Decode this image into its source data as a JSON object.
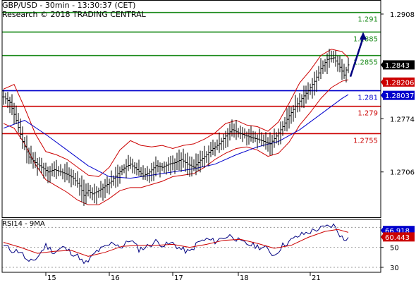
{
  "header": {
    "title": "GBP/USD - 30min - 13:30:37 (CET)",
    "subtitle": "Research © 2018 TRADING CENTRAL"
  },
  "colors": {
    "resistance": "#1a8a1a",
    "pivot": "#0000cc",
    "support": "#cc0000",
    "price": "#000000",
    "bollinger": "#cc0000",
    "moving_average": "#0000cc",
    "arrow": "#000080",
    "rsi": "#000080",
    "rsi_ma": "#cc0000",
    "current_tag_bg": "#000000",
    "blue_tag_bg": "#0000cc",
    "red_tag_bg": "#cc0000"
  },
  "chart_data": [
    {
      "type": "candlestick",
      "ylim": [
        1.2648,
        1.2926
      ],
      "y_ticks": [
        "1.2908",
        "1.2774",
        "1.2706"
      ],
      "x_ticks": [
        "15",
        "16",
        "17",
        "18",
        "21"
      ],
      "levels": [
        {
          "name": "resistance",
          "value": 1.291,
          "label": "1.291"
        },
        {
          "name": "resistance",
          "value": 1.2885,
          "label": "1.2885"
        },
        {
          "name": "resistance",
          "value": 1.2855,
          "label": "1.2855"
        },
        {
          "name": "pivot",
          "value": 1.281,
          "label": "1.281"
        },
        {
          "name": "support",
          "value": 1.279,
          "label": "1.279"
        },
        {
          "name": "support",
          "value": 1.2755,
          "label": "1.2755"
        }
      ],
      "price_tags": [
        {
          "value": 1.2843,
          "label": "1.2843",
          "style": "current"
        },
        {
          "value": 1.2821,
          "label": "1.28206",
          "style": "red"
        },
        {
          "value": 1.2804,
          "label": "1.28037",
          "style": "blue"
        }
      ],
      "close_path": [
        [
          0,
          1.2802
        ],
        [
          3,
          1.2795
        ],
        [
          6,
          1.2772
        ],
        [
          9,
          1.2745
        ],
        [
          12,
          1.2725
        ],
        [
          15,
          1.2718
        ],
        [
          18,
          1.2712
        ],
        [
          21,
          1.2706
        ],
        [
          24,
          1.2709
        ],
        [
          27,
          1.2706
        ],
        [
          30,
          1.2703
        ],
        [
          33,
          1.2698
        ],
        [
          36,
          1.2688
        ],
        [
          38,
          1.2676
        ],
        [
          40,
          1.2682
        ],
        [
          42,
          1.2678
        ],
        [
          45,
          1.2682
        ],
        [
          48,
          1.2688
        ],
        [
          51,
          1.2694
        ],
        [
          54,
          1.2704
        ],
        [
          57,
          1.2711
        ],
        [
          60,
          1.2716
        ],
        [
          63,
          1.2709
        ],
        [
          66,
          1.2701
        ],
        [
          69,
          1.2706
        ],
        [
          72,
          1.2714
        ],
        [
          75,
          1.2712
        ],
        [
          78,
          1.2716
        ],
        [
          81,
          1.2718
        ],
        [
          84,
          1.2722
        ],
        [
          87,
          1.2716
        ],
        [
          90,
          1.2712
        ],
        [
          93,
          1.2721
        ],
        [
          96,
          1.2728
        ],
        [
          99,
          1.2736
        ],
        [
          102,
          1.2742
        ],
        [
          105,
          1.2752
        ],
        [
          108,
          1.276
        ],
        [
          111,
          1.2756
        ],
        [
          114,
          1.2753
        ],
        [
          117,
          1.275
        ],
        [
          120,
          1.2748
        ],
        [
          123,
          1.2745
        ],
        [
          126,
          1.2742
        ],
        [
          129,
          1.2752
        ],
        [
          132,
          1.2764
        ],
        [
          135,
          1.2778
        ],
        [
          138,
          1.279
        ],
        [
          141,
          1.28
        ],
        [
          144,
          1.281
        ],
        [
          147,
          1.2822
        ],
        [
          150,
          1.2838
        ],
        [
          153,
          1.285
        ],
        [
          156,
          1.2852
        ],
        [
          159,
          1.284
        ],
        [
          161,
          1.283
        ],
        [
          163,
          1.2843
        ]
      ],
      "bollinger_upper": [
        [
          0,
          1.2812
        ],
        [
          5,
          1.2818
        ],
        [
          10,
          1.2788
        ],
        [
          15,
          1.2755
        ],
        [
          20,
          1.2732
        ],
        [
          25,
          1.2728
        ],
        [
          30,
          1.2722
        ],
        [
          35,
          1.2712
        ],
        [
          40,
          1.2702
        ],
        [
          45,
          1.27
        ],
        [
          50,
          1.2712
        ],
        [
          55,
          1.2734
        ],
        [
          60,
          1.2746
        ],
        [
          65,
          1.274
        ],
        [
          70,
          1.2738
        ],
        [
          75,
          1.274
        ],
        [
          80,
          1.2736
        ],
        [
          85,
          1.274
        ],
        [
          90,
          1.2742
        ],
        [
          95,
          1.2748
        ],
        [
          100,
          1.2756
        ],
        [
          105,
          1.2768
        ],
        [
          110,
          1.2772
        ],
        [
          115,
          1.2766
        ],
        [
          120,
          1.2764
        ],
        [
          125,
          1.2758
        ],
        [
          130,
          1.277
        ],
        [
          135,
          1.2794
        ],
        [
          140,
          1.282
        ],
        [
          145,
          1.2836
        ],
        [
          150,
          1.2855
        ],
        [
          155,
          1.2863
        ],
        [
          160,
          1.286
        ],
        [
          163,
          1.2852
        ]
      ],
      "bollinger_lower": [
        [
          0,
          1.2768
        ],
        [
          5,
          1.2762
        ],
        [
          10,
          1.2742
        ],
        [
          15,
          1.2716
        ],
        [
          20,
          1.2696
        ],
        [
          25,
          1.2688
        ],
        [
          30,
          1.268
        ],
        [
          35,
          1.267
        ],
        [
          40,
          1.2664
        ],
        [
          45,
          1.2664
        ],
        [
          50,
          1.2672
        ],
        [
          55,
          1.2682
        ],
        [
          60,
          1.2686
        ],
        [
          65,
          1.2686
        ],
        [
          70,
          1.269
        ],
        [
          75,
          1.2694
        ],
        [
          80,
          1.27
        ],
        [
          85,
          1.2702
        ],
        [
          90,
          1.2704
        ],
        [
          95,
          1.2712
        ],
        [
          100,
          1.2722
        ],
        [
          105,
          1.273
        ],
        [
          110,
          1.2736
        ],
        [
          115,
          1.2738
        ],
        [
          120,
          1.2734
        ],
        [
          125,
          1.2726
        ],
        [
          130,
          1.273
        ],
        [
          135,
          1.2744
        ],
        [
          140,
          1.2766
        ],
        [
          145,
          1.2782
        ],
        [
          150,
          1.28
        ],
        [
          155,
          1.2814
        ],
        [
          160,
          1.2822
        ],
        [
          163,
          1.2824
        ]
      ],
      "moving_average": [
        [
          0,
          1.2762
        ],
        [
          10,
          1.2772
        ],
        [
          20,
          1.2754
        ],
        [
          30,
          1.2734
        ],
        [
          40,
          1.2714
        ],
        [
          50,
          1.27
        ],
        [
          60,
          1.2698
        ],
        [
          70,
          1.2702
        ],
        [
          80,
          1.2706
        ],
        [
          90,
          1.271
        ],
        [
          100,
          1.2716
        ],
        [
          110,
          1.2728
        ],
        [
          120,
          1.2738
        ],
        [
          130,
          1.2745
        ],
        [
          140,
          1.276
        ],
        [
          150,
          1.278
        ],
        [
          160,
          1.28
        ],
        [
          163,
          1.2805
        ]
      ],
      "arrow": {
        "from": [
          164,
          1.2828
        ],
        "to": [
          170,
          1.2885
        ]
      }
    },
    {
      "type": "line",
      "title": "RSI14 - 9MA",
      "ylim": [
        25,
        78
      ],
      "y_ticks": [
        "30",
        "50"
      ],
      "dashed_levels": [
        30,
        50,
        70
      ],
      "series": [
        {
          "name": "RSI14",
          "values": [
            [
              0,
              52
            ],
            [
              4,
              47
            ],
            [
              8,
              46
            ],
            [
              12,
              34
            ],
            [
              16,
              40
            ],
            [
              20,
              52
            ],
            [
              24,
              45
            ],
            [
              28,
              50
            ],
            [
              32,
              45
            ],
            [
              36,
              40
            ],
            [
              38,
              33
            ],
            [
              40,
              36
            ],
            [
              44,
              46
            ],
            [
              48,
              50
            ],
            [
              52,
              55
            ],
            [
              56,
              50
            ],
            [
              60,
              58
            ],
            [
              64,
              48
            ],
            [
              68,
              51
            ],
            [
              72,
              56
            ],
            [
              76,
              52
            ],
            [
              80,
              54
            ],
            [
              84,
              48
            ],
            [
              88,
              45
            ],
            [
              92,
              55
            ],
            [
              96,
              58
            ],
            [
              100,
              56
            ],
            [
              104,
              60
            ],
            [
              108,
              62
            ],
            [
              112,
              55
            ],
            [
              116,
              53
            ],
            [
              120,
              51
            ],
            [
              124,
              49
            ],
            [
              128,
              42
            ],
            [
              132,
              52
            ],
            [
              136,
              57
            ],
            [
              140,
              62
            ],
            [
              144,
              65
            ],
            [
              148,
              68
            ],
            [
              152,
              70
            ],
            [
              156,
              72
            ],
            [
              158,
              66
            ],
            [
              161,
              57
            ],
            [
              163,
              60
            ]
          ]
        },
        {
          "name": "9MA",
          "values": [
            [
              0,
              55
            ],
            [
              8,
              50
            ],
            [
              16,
              44
            ],
            [
              24,
              46
            ],
            [
              32,
              47
            ],
            [
              40,
              41
            ],
            [
              48,
              45
            ],
            [
              56,
              51
            ],
            [
              64,
              52
            ],
            [
              72,
              52
            ],
            [
              80,
              53
            ],
            [
              88,
              50
            ],
            [
              96,
              53
            ],
            [
              104,
              57
            ],
            [
              112,
              58
            ],
            [
              120,
              54
            ],
            [
              128,
              49
            ],
            [
              136,
              52
            ],
            [
              144,
              60
            ],
            [
              152,
              66
            ],
            [
              158,
              68
            ],
            [
              163,
              65
            ]
          ]
        }
      ],
      "value_tags": [
        {
          "value": 66.918,
          "label": "66.918",
          "style": "blue"
        },
        {
          "value": 60.443,
          "label": "60.443",
          "style": "red"
        }
      ]
    }
  ]
}
